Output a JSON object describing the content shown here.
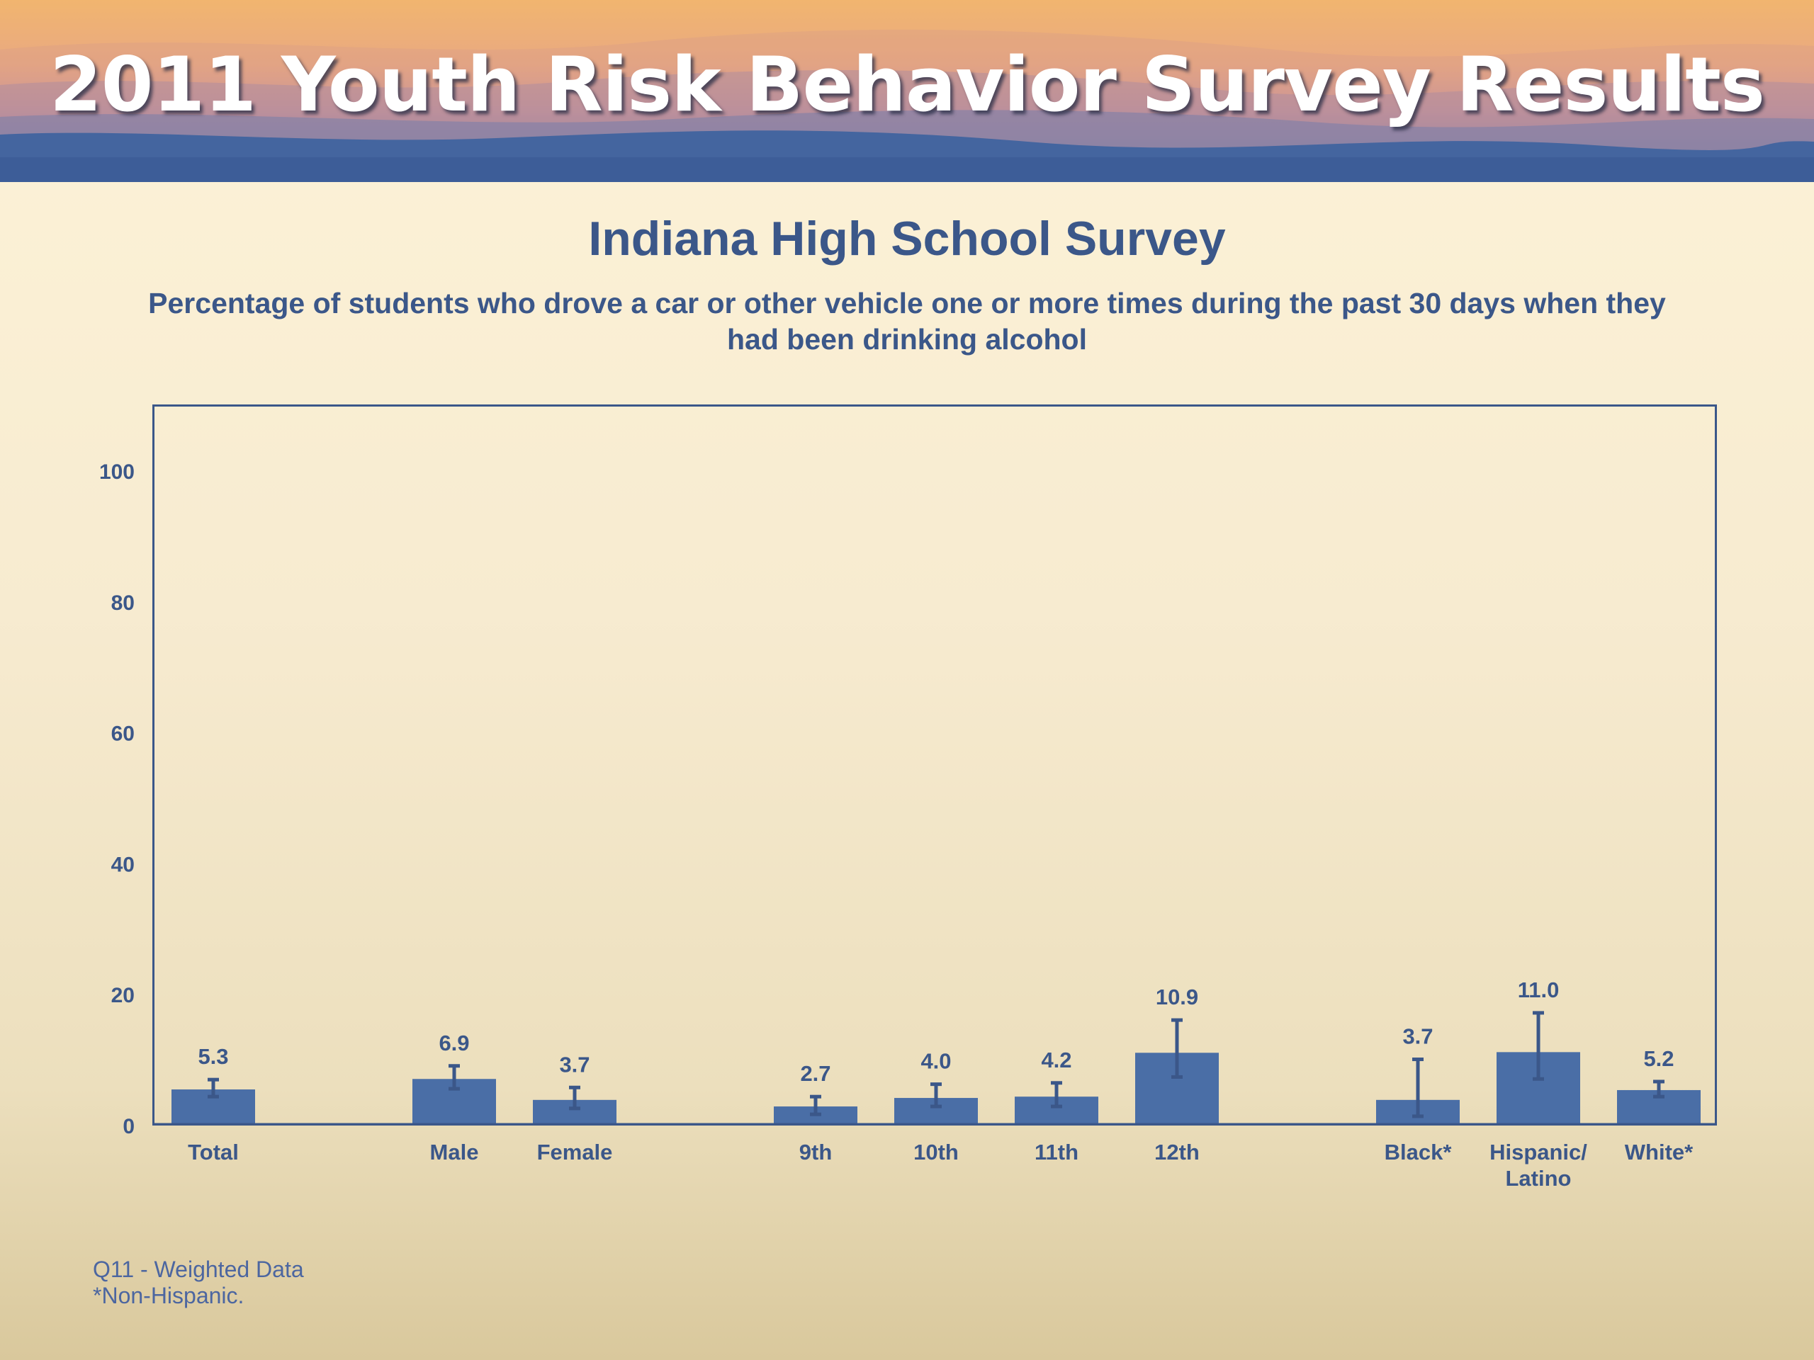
{
  "banner": {
    "title": "2011 Youth Risk Behavior Survey Results"
  },
  "colors": {
    "bar": "#4a6ea6",
    "axis": "#3b5789",
    "text": "#3b5789"
  },
  "chart_data": {
    "type": "bar",
    "title": "Indiana High School Survey",
    "subtitle": "Percentage of students who drove a car or other vehicle one or more times during the past 30 days when they had been drinking alcohol",
    "xlabel": "",
    "ylabel": "",
    "ylim": [
      0,
      110
    ],
    "yticks": [
      0,
      20,
      40,
      60,
      80,
      100
    ],
    "grid": false,
    "error_bars": true,
    "categories": [
      "Total",
      "Male",
      "Female",
      "9th",
      "10th",
      "11th",
      "12th",
      "Black*",
      "Hispanic/ Latino",
      "White*"
    ],
    "category_lines": [
      [
        "Total"
      ],
      [
        "Male"
      ],
      [
        "Female"
      ],
      [
        "9th"
      ],
      [
        "10th"
      ],
      [
        "11th"
      ],
      [
        "12th"
      ],
      [
        "Black*"
      ],
      [
        "Hispanic/",
        "Latino"
      ],
      [
        "White*"
      ]
    ],
    "values": [
      5.3,
      6.9,
      3.7,
      2.7,
      4.0,
      4.2,
      10.9,
      3.7,
      11.0,
      5.2
    ],
    "value_labels": [
      "5.3",
      "6.9",
      "3.7",
      "2.7",
      "4.0",
      "4.2",
      "10.9",
      "3.7",
      "11.0",
      "5.2"
    ],
    "ci_low": [
      4.2,
      5.4,
      2.4,
      1.5,
      2.7,
      2.7,
      7.2,
      1.2,
      6.9,
      4.2
    ],
    "ci_high": [
      6.8,
      8.9,
      5.6,
      4.2,
      6.1,
      6.3,
      15.9,
      9.9,
      17.0,
      6.5
    ]
  },
  "footnotes": {
    "line1": "Q11 - Weighted Data",
    "line2": "*Non-Hispanic."
  }
}
